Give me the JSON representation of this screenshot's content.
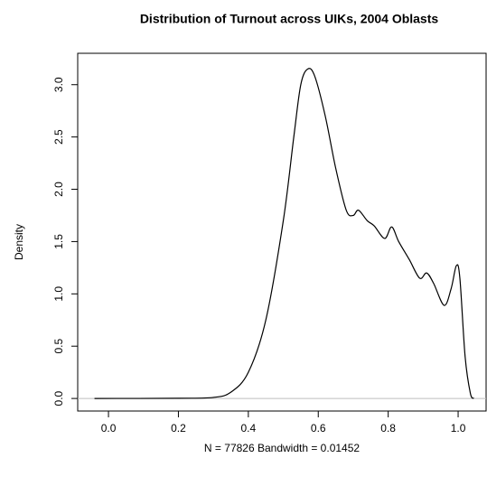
{
  "chart_data": {
    "type": "line",
    "title": "Distribution of Turnout across UIKs, 2004 Oblasts",
    "xlabel": "N = 77826   Bandwidth = 0.01452",
    "ylabel": "Density",
    "x": [
      -0.04,
      0.2,
      0.3,
      0.35,
      0.4,
      0.45,
      0.5,
      0.53,
      0.55,
      0.57,
      0.59,
      0.62,
      0.65,
      0.68,
      0.7,
      0.715,
      0.74,
      0.76,
      0.79,
      0.81,
      0.83,
      0.86,
      0.89,
      0.91,
      0.93,
      0.96,
      0.98,
      0.995,
      1.005,
      1.02,
      1.035,
      1.045
    ],
    "series": [
      {
        "name": "Density",
        "color": "#000000",
        "values": [
          0,
          0.002,
          0.01,
          0.06,
          0.25,
          0.75,
          1.7,
          2.5,
          3.0,
          3.15,
          3.08,
          2.7,
          2.2,
          1.8,
          1.75,
          1.8,
          1.7,
          1.65,
          1.53,
          1.64,
          1.5,
          1.33,
          1.15,
          1.2,
          1.1,
          0.89,
          1.05,
          1.27,
          1.15,
          0.4,
          0.05,
          0
        ]
      }
    ],
    "xlim": [
      -0.088,
      1.08
    ],
    "ylim": [
      -0.12,
      3.3
    ],
    "xticks": [
      {
        "value": 0,
        "label": "0.0"
      },
      0.2,
      0.4,
      0.6,
      0.8,
      {
        "value": 1,
        "label": "1.0"
      }
    ],
    "yticks": [
      {
        "value": 0,
        "label": "0.0"
      },
      0.5,
      {
        "value": 1,
        "label": "1.0"
      },
      1.5,
      {
        "value": 2,
        "label": "2.0"
      },
      2.5,
      {
        "value": 3,
        "label": "3.0"
      }
    ],
    "zero_line_color": "#bebebe"
  }
}
